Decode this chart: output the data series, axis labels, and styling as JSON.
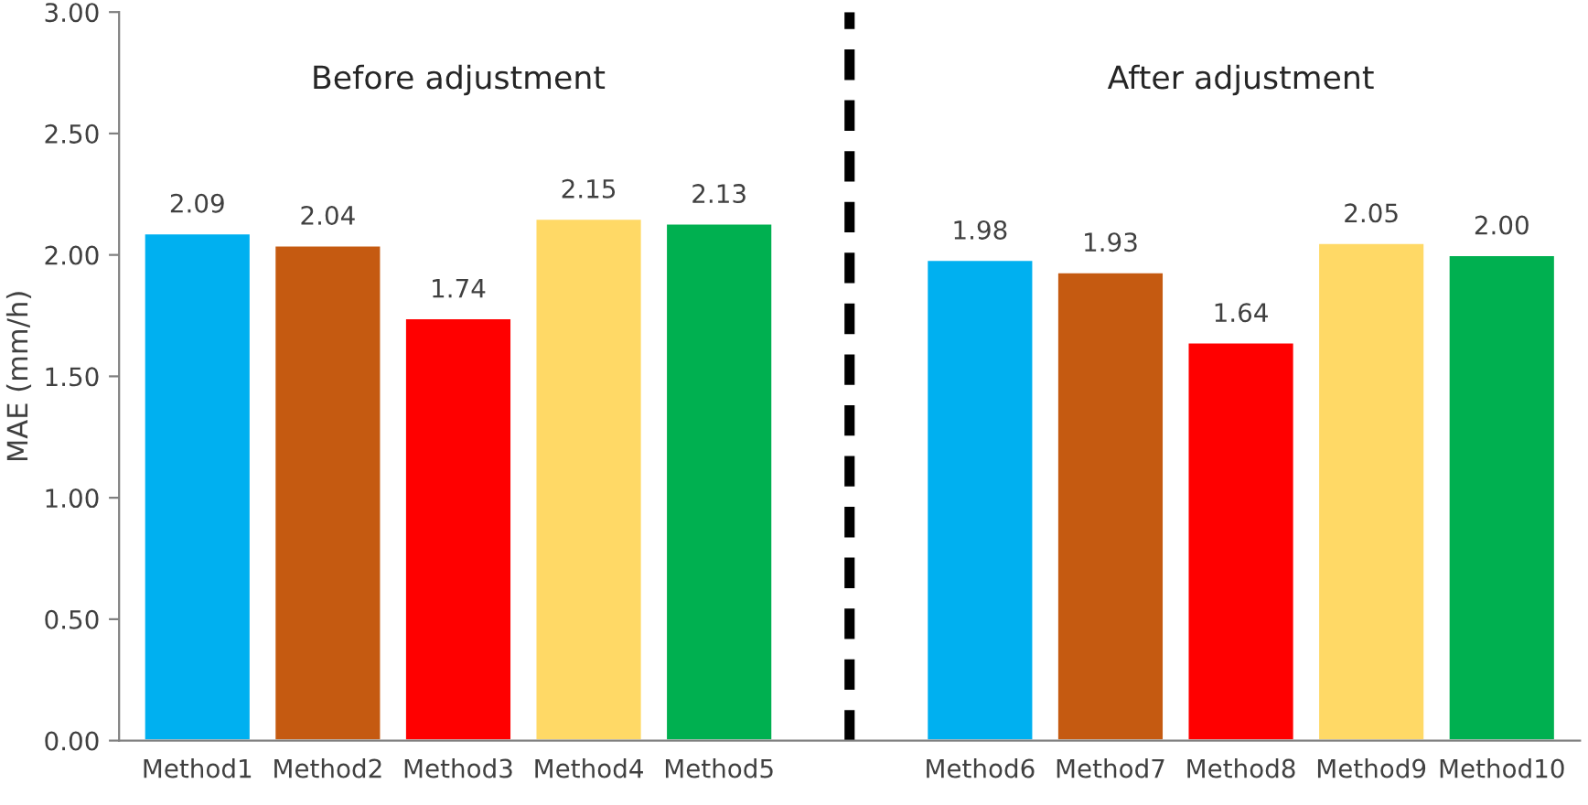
{
  "chart_data": {
    "type": "bar",
    "ylabel": "MAE (mm/h)",
    "categories": [
      "Method1",
      "Method2",
      "Method3",
      "Method4",
      "Method5",
      null,
      "Method6",
      "Method7",
      "Method8",
      "Method9",
      "Method10"
    ],
    "values": [
      2.09,
      2.04,
      1.74,
      2.15,
      2.13,
      null,
      1.98,
      1.93,
      1.64,
      2.05,
      2.0
    ],
    "colors": [
      "#00b0f0",
      "#c55a11",
      "#ff0000",
      "#ffd966",
      "#00b050",
      "#ffffff",
      "#00b0f0",
      "#c55a11",
      "#ff0000",
      "#ffd966",
      "#00b050"
    ],
    "value_labels": [
      "2.09",
      "2.04",
      "1.74",
      "2.15",
      "2.13",
      null,
      "1.98",
      "1.93",
      "1.64",
      "2.05",
      "2.00"
    ],
    "ylim": [
      0,
      3
    ],
    "yticks": [
      {
        "value": 0,
        "label": "0.00"
      },
      {
        "value": 0.5,
        "label": "0.50"
      },
      {
        "value": 1,
        "label": "1.00"
      },
      {
        "value": 1.5,
        "label": "1.50"
      },
      {
        "value": 2,
        "label": "2.00"
      },
      {
        "value": 2.5,
        "label": "2.50"
      },
      {
        "value": 3,
        "label": "3.00"
      }
    ],
    "annotations": [
      "Before adjustment",
      "After adjustment"
    ],
    "legend": false
  }
}
